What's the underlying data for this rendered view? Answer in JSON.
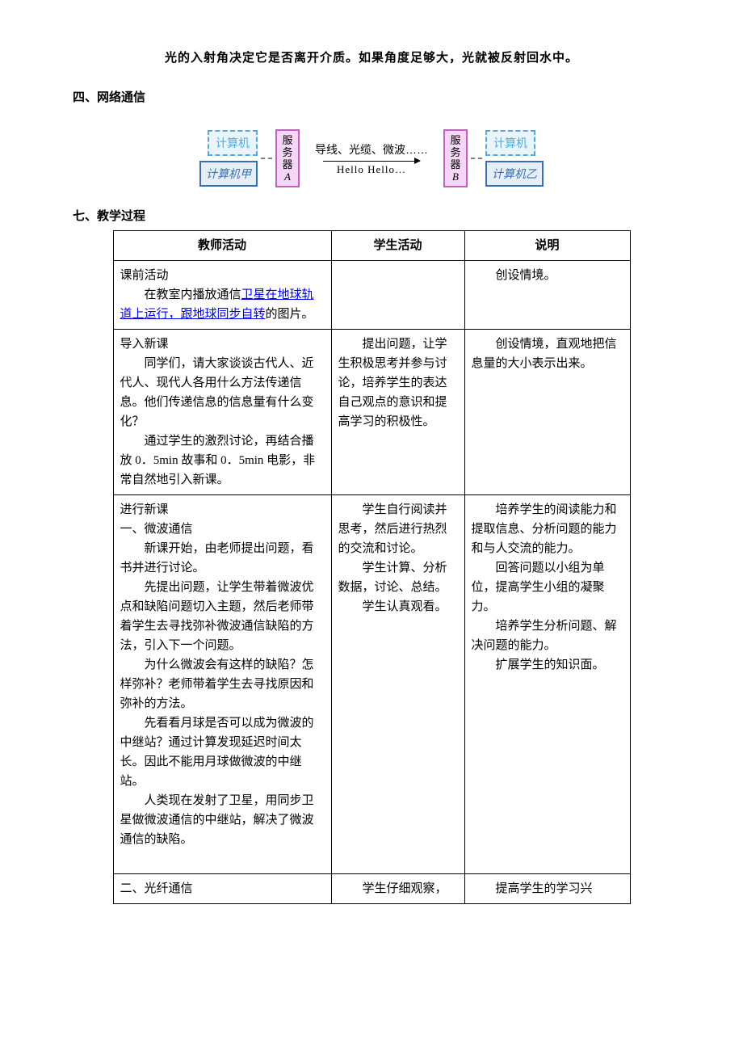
{
  "top_bold_line": "光的入射角决定它是否离开介质。如果角度足够大，光就被反射回水中。",
  "section4": "四、网络通信",
  "diagram": {
    "dashed_left_top": "计算机",
    "solid_left": "计算机甲",
    "server_a": "服务器",
    "server_a_sub": "A",
    "mid_label": "导线、光缆、微波……",
    "hello": "Hello Hello…",
    "server_b": "服务器",
    "server_b_sub": "B",
    "dashed_right_top": "计算机",
    "solid_right": "计算机乙"
  },
  "section7": "七、教学过程",
  "table": {
    "headers": [
      "教师活动",
      "学生活动",
      "说明"
    ],
    "rows": [
      {
        "teacher_title": "课前活动",
        "teacher_body_pre": "在教室内播放通信",
        "teacher_link": "卫星在地球轨道上运行，跟地球同步自转",
        "teacher_body_post": "的图片。",
        "student": "",
        "note_indent": "创设情境。"
      },
      {
        "teacher_title": "导入新课",
        "teacher_paras": [
          "同学们，请大家谈谈古代人、近代人、现代人各用什么方法传递信息。他们传递信息的信息量有什么变化？",
          "通过学生的激烈讨论，再结合播放 0．5min 故事和 0．5min 电影，非常自然地引入新课。"
        ],
        "student_indent": "提出问题，让学生积极思考并参与讨论，培养学生的表达自己观点的意识和提高学习的积极性。",
        "note_indent": "创设情境，直观地把信息量的大小表示出来。"
      },
      {
        "teacher_title": "进行新课",
        "teacher_sub": "一、微波通信",
        "teacher_paras": [
          "新课开始，由老师提出问题，看书并进行讨论。",
          "先提出问题，让学生带着微波优点和缺陷问题切入主题，然后老师带着学生去寻找弥补微波通信缺陷的方法，引入下一个问题。",
          "为什么微波会有这样的缺陷？怎样弥补？老师带着学生去寻找原因和弥补的方法。",
          "先看看月球是否可以成为微波的中继站？通过计算发现延迟时间太长。因此不能用月球做微波的中继站。",
          "人类现在发射了卫星，用同步卫星做微波通信的中继站，解决了微波通信的缺陷。"
        ],
        "student_paras": [
          "学生自行阅读并思考，然后进行热烈的交流和讨论。",
          "学生计算、分析数据，讨论、总结。",
          "学生认真观看。"
        ],
        "note_paras": [
          "",
          "培养学生的阅读能力和提取信息、分析问题的能力和与人交流的能力。",
          "",
          "回答问题以小组为单位，提高学生小组的凝聚力。",
          "",
          "",
          "培养学生分析问题、解决问题的能力。",
          "扩展学生的知识面。"
        ]
      },
      {
        "teacher_title": "二、光纤通信",
        "student_indent": "学生仔细观察，",
        "note_indent": "提高学生的学习兴"
      }
    ]
  }
}
